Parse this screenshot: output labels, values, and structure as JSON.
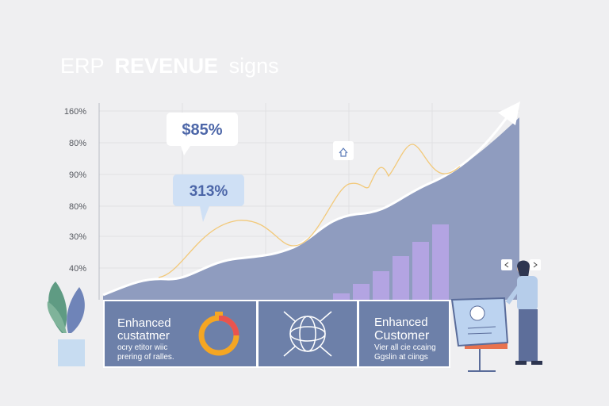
{
  "title": [
    "ERP",
    "REVENUE",
    "signs"
  ],
  "y_axis_labels": [
    "160%",
    "80%",
    "90%",
    "80%",
    "30%",
    "40%"
  ],
  "callouts": [
    "$85%",
    "313%"
  ],
  "panels": [
    {
      "heading": [
        "Enhanced",
        "custatmer"
      ],
      "text": [
        "ocry etitor wiic",
        "prering of ralles."
      ]
    },
    {
      "heading": [
        "Enhanced",
        "Customer"
      ],
      "text": [
        "Vier all cie ccaing",
        "Ggslin at ciings"
      ]
    }
  ]
}
